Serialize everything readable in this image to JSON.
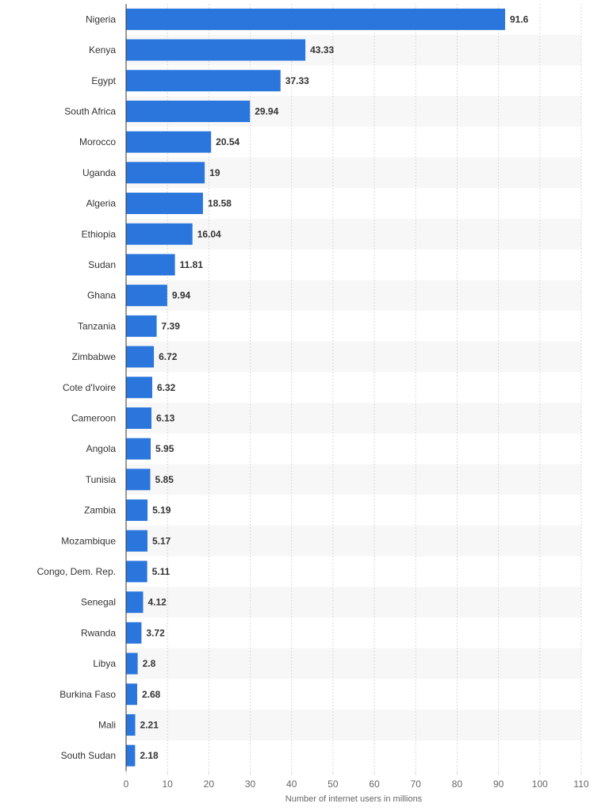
{
  "chart_data": {
    "type": "bar",
    "orientation": "horizontal",
    "categories": [
      "Nigeria",
      "Kenya",
      "Egypt",
      "South Africa",
      "Morocco",
      "Uganda",
      "Algeria",
      "Ethiopia",
      "Sudan",
      "Ghana",
      "Tanzania",
      "Zimbabwe",
      "Cote d'Ivoire",
      "Cameroon",
      "Angola",
      "Tunisia",
      "Zambia",
      "Mozambique",
      "Congo, Dem. Rep.",
      "Senegal",
      "Rwanda",
      "Libya",
      "Burkina Faso",
      "Mali",
      "South Sudan"
    ],
    "values": [
      91.6,
      43.33,
      37.33,
      29.94,
      20.54,
      19,
      18.58,
      16.04,
      11.81,
      9.94,
      7.39,
      6.72,
      6.32,
      6.13,
      5.95,
      5.85,
      5.19,
      5.17,
      5.11,
      4.12,
      3.72,
      2.8,
      2.68,
      2.21,
      2.18
    ],
    "xlabel": "Number of internet users in millions",
    "xlim": [
      0,
      110
    ],
    "xticks": [
      0,
      10,
      20,
      30,
      40,
      50,
      60,
      70,
      80,
      90,
      100,
      110
    ],
    "grid": true,
    "data_labels": true,
    "colors": {
      "bar": "#2a76dd",
      "band": "#f7f7f7",
      "grid": "#d9d9d9",
      "axis": "#333333"
    }
  }
}
